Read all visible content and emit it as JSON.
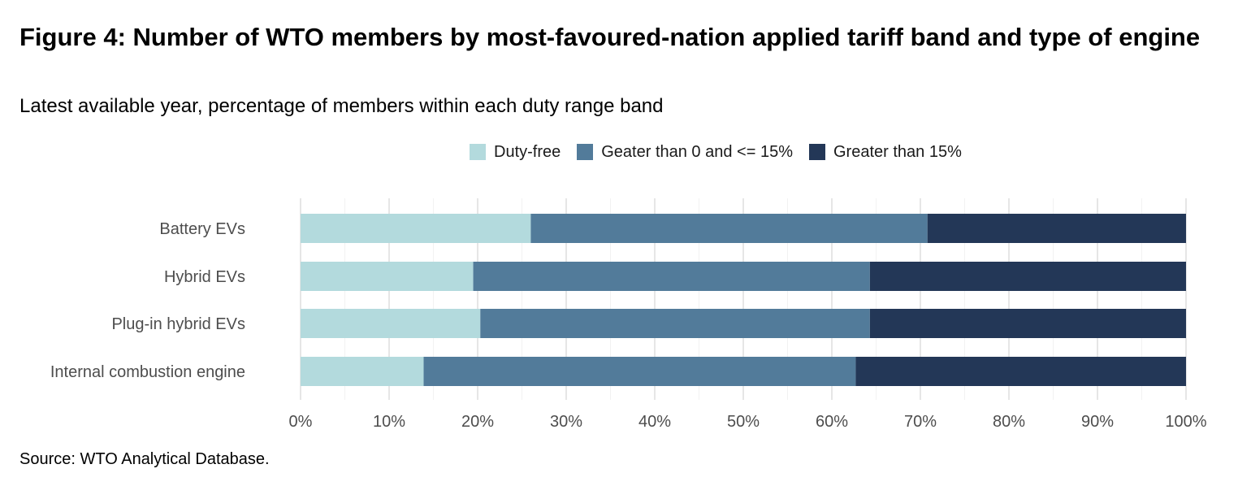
{
  "chart_data": {
    "type": "bar",
    "orientation": "horizontal",
    "stacked": true,
    "title": "Figure 4: Number of WTO members by most-favoured-nation applied tariff band and type of engine",
    "subtitle": "Latest available year, percentage of members within each duty range band",
    "categories": [
      "Battery EVs",
      "Hybrid EVs",
      "Plug-in hybrid EVs",
      "Internal combustion engine"
    ],
    "series": [
      {
        "name": "Duty-free",
        "color": "#b3dadd",
        "values": [
          26,
          19.5,
          20.3,
          13.9
        ]
      },
      {
        "name": "Geater than 0 and <= 15%",
        "color": "#527b9a",
        "values": [
          44.8,
          44.8,
          44,
          48.8
        ]
      },
      {
        "name": "Greater than 15%",
        "color": "#233757",
        "values": [
          29.2,
          35.7,
          35.7,
          37.3
        ]
      }
    ],
    "xlim": [
      0,
      100
    ],
    "xticks": [
      0,
      10,
      20,
      30,
      40,
      50,
      60,
      70,
      80,
      90,
      100
    ],
    "xtick_labels": [
      "0%",
      "10%",
      "20%",
      "30%",
      "40%",
      "50%",
      "60%",
      "70%",
      "80%",
      "90%",
      "100%"
    ],
    "xlabel": "",
    "ylabel": "",
    "grid": true,
    "legend_position": "top",
    "source": "Source: WTO Analytical Database."
  }
}
